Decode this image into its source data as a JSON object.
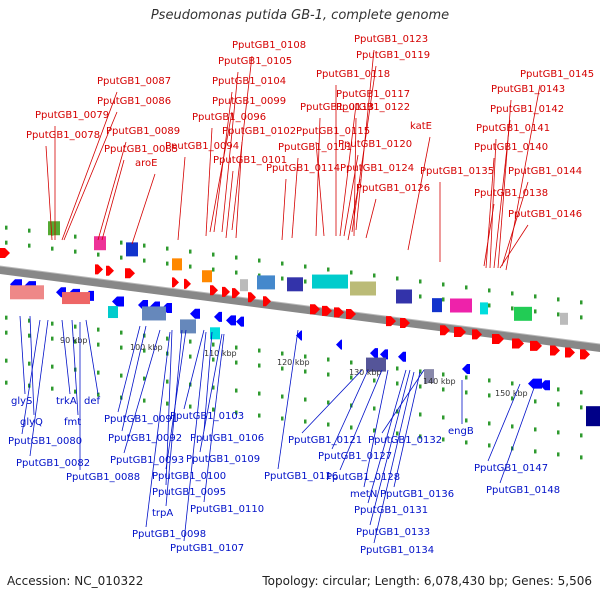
{
  "title": "Pseudomonas putida GB-1, complete genome",
  "footer": {
    "accession": "Accession: NC_010322",
    "summary": "Topology: circular; Length: 6,078,430 bp; Genes: 5,506"
  },
  "colors": {
    "forward_label": "#d40000",
    "reverse_label": "#0010c8",
    "forward_gene": "#ff0000",
    "reverse_gene": "#0000ff",
    "backbone": "#888888",
    "tick": "#2e9a2e",
    "ruler_text": "#333333"
  },
  "ruler": [
    "90 kbp",
    "100 kbp",
    "110 kbp",
    "120 kbp",
    "130 kbp",
    "140 kbp",
    "150 kbp"
  ],
  "top_labels": [
    "PputGB1_0108",
    "PputGB1_0123",
    "PputGB1_0105",
    "PputGB1_0119",
    "PputGB1_0087",
    "PputGB1_0104",
    "PputGB1_0118",
    "PputGB1_0145",
    "PputGB1_0086",
    "PputGB1_0117",
    "PputGB1_0143",
    "PputGB1_0099",
    "PputGB1_0113",
    "PputGB1_0122",
    "PputGB1_0079",
    "PputGB1_0096",
    "PputGB1_0142",
    "PputGB1_0089",
    "PputGB1_0078",
    "PputGB1_0102",
    "PputGB1_0115",
    "PputGB1_0141",
    "PputGB1_0085",
    "PputGB1_0094",
    "PputGB1_0111",
    "PputGB1_0120",
    "PputGB1_0140",
    "aroE",
    "PputGB1_0101",
    "katE",
    "PputGB1_0114",
    "PputGB1_0124",
    "PputGB1_0135",
    "PputGB1_0144",
    "PputGB1_0126",
    "PputGB1_0138",
    "PputGB1_0146"
  ],
  "bottom_labels": [
    "glyS",
    "trkA",
    "def",
    "fmt",
    "glyQ",
    "PputGB1_0080",
    "PputGB1_0082",
    "PputGB1_0088",
    "PputGB1_0091",
    "PputGB1_0103",
    "PputGB1_0092",
    "PputGB1_0106",
    "PputGB1_0093",
    "PputGB1_0109",
    "PputGB1_0100",
    "PputGB1_0095",
    "trpA",
    "PputGB1_0110",
    "PputGB1_0098",
    "PputGB1_0107",
    "PputGB1_0116",
    "PputGB1_0121",
    "PputGB1_0132",
    "PputGB1_0127",
    "PputGB1_0128",
    "metN",
    "PputGB1_0136",
    "PputGB1_0131",
    "PputGB1_0133",
    "PputGB1_0134",
    "engB",
    "PputGB1_0147",
    "PputGB1_0148"
  ]
}
